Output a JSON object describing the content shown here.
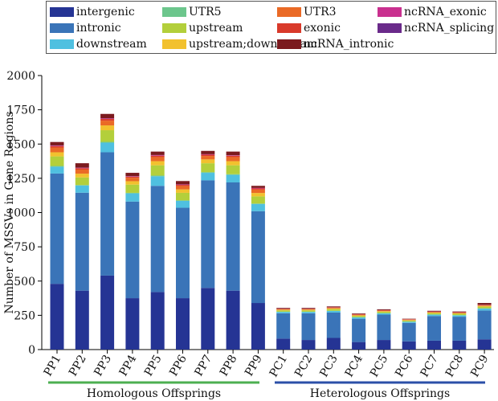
{
  "chart_data": {
    "type": "bar",
    "stacked": true,
    "categories": [
      "PP1",
      "PP2",
      "PP3",
      "PP4",
      "PP5",
      "PP6",
      "PP7",
      "PP8",
      "PP9",
      "PC1",
      "PC2",
      "PC3",
      "PC4",
      "PC5",
      "PC6",
      "PC7",
      "PC8",
      "PC9"
    ],
    "ylabel": "Number of MSSVs in Gene Regions",
    "xlabel": "",
    "ylim": [
      0,
      2000
    ],
    "yticks": [
      0,
      250,
      500,
      750,
      1000,
      1250,
      1500,
      1750,
      2000
    ],
    "groups": [
      {
        "label": "Homologous Offsprings",
        "color": "#4caf50"
      },
      {
        "label": "Heterologous Offsprings",
        "color": "#2b4fa8"
      }
    ],
    "series": [
      {
        "name": "intergenic",
        "color": "#253494",
        "values": [
          480,
          430,
          540,
          375,
          420,
          375,
          450,
          430,
          340,
          80,
          70,
          85,
          55,
          70,
          60,
          65,
          65,
          75
        ]
      },
      {
        "name": "intronic",
        "color": "#3a74b8",
        "values": [
          805,
          715,
          900,
          705,
          775,
          660,
          785,
          790,
          670,
          185,
          195,
          185,
          170,
          185,
          135,
          180,
          175,
          210
        ]
      },
      {
        "name": "downstream",
        "color": "#4fc0e0",
        "values": [
          50,
          52,
          70,
          60,
          70,
          50,
          55,
          55,
          52,
          10,
          10,
          12,
          10,
          10,
          8,
          10,
          10,
          15
        ]
      },
      {
        "name": "UTR5",
        "color": "#6cc68c",
        "values": [
          5,
          4,
          6,
          4,
          5,
          4,
          5,
          5,
          4,
          1,
          1,
          1,
          1,
          1,
          1,
          1,
          1,
          1
        ]
      },
      {
        "name": "upstream",
        "color": "#b3cf3b",
        "values": [
          70,
          55,
          85,
          60,
          75,
          55,
          65,
          65,
          52,
          10,
          10,
          12,
          10,
          10,
          8,
          10,
          10,
          12
        ]
      },
      {
        "name": "upstream;downstream",
        "color": "#f2c12e",
        "values": [
          30,
          28,
          35,
          25,
          30,
          25,
          28,
          30,
          25,
          4,
          4,
          5,
          4,
          4,
          3,
          4,
          4,
          5
        ]
      },
      {
        "name": "UTR3",
        "color": "#ea6a26",
        "values": [
          35,
          30,
          35,
          25,
          30,
          25,
          25,
          30,
          25,
          5,
          5,
          6,
          5,
          5,
          4,
          5,
          5,
          6
        ]
      },
      {
        "name": "exonic",
        "color": "#d93a2b",
        "values": [
          10,
          10,
          12,
          8,
          10,
          8,
          9,
          10,
          8,
          2,
          2,
          2,
          2,
          2,
          2,
          2,
          2,
          2
        ]
      },
      {
        "name": "ncRNA_exonic",
        "color": "#c9308f",
        "values": [
          4,
          3,
          4,
          3,
          4,
          3,
          3,
          3,
          3,
          1,
          1,
          1,
          1,
          1,
          1,
          1,
          1,
          1
        ]
      },
      {
        "name": "ncRNA_splicing",
        "color": "#6a2a8a",
        "values": [
          1,
          1,
          1,
          1,
          1,
          1,
          1,
          1,
          1,
          0,
          0,
          0,
          0,
          0,
          0,
          0,
          0,
          0
        ]
      },
      {
        "name": "ncRNA_intronic",
        "color": "#7b1a1e",
        "values": [
          25,
          32,
          32,
          24,
          25,
          24,
          24,
          26,
          15,
          6,
          6,
          6,
          5,
          6,
          3,
          5,
          5,
          13
        ]
      }
    ],
    "legend": {
      "placement": "top",
      "order": [
        "intergenic",
        "UTR5",
        "UTR3",
        "ncRNA_exonic",
        "intronic",
        "upstream",
        "exonic",
        "ncRNA_splicing",
        "downstream",
        "upstream;downstream",
        "ncRNA_intronic"
      ]
    }
  }
}
